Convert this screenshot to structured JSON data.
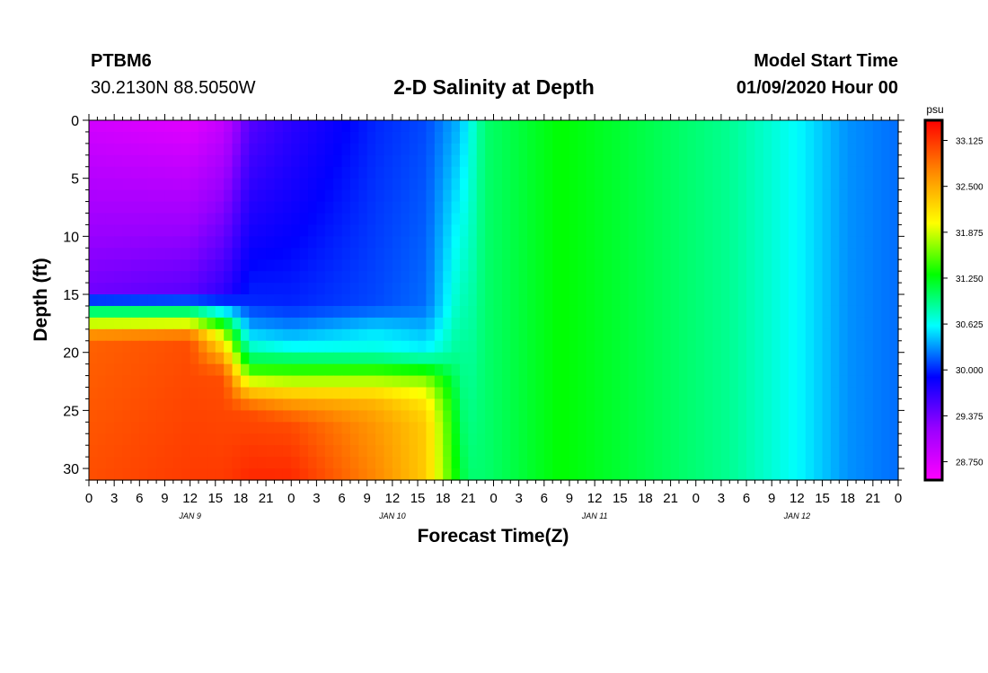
{
  "header": {
    "station": "PTBM6",
    "location": "30.2130N 88.5050W",
    "title": "2-D Salinity at Depth",
    "start_label": "Model Start Time",
    "start_value": "01/09/2020 Hour 00"
  },
  "chart_data": {
    "type": "heatmap",
    "title": "2-D Salinity at Depth",
    "xlabel": "Forecast Time(Z)",
    "ylabel": "Depth (ft)",
    "x_range_hours": [
      0,
      96
    ],
    "x_tick_labels": [
      "0",
      "3",
      "6",
      "9",
      "12",
      "15",
      "18",
      "21",
      "0",
      "3",
      "6",
      "9",
      "12",
      "15",
      "18",
      "21",
      "0",
      "3",
      "6",
      "9",
      "12",
      "15",
      "18",
      "21",
      "0",
      "3",
      "6",
      "9",
      "12",
      "15",
      "18",
      "21",
      "0"
    ],
    "day_labels": [
      "JAN 9",
      "JAN 10",
      "JAN 11",
      "JAN 12"
    ],
    "y_range": [
      0,
      31
    ],
    "y_inverted": true,
    "y_ticks": [
      0,
      5,
      10,
      15,
      20,
      25,
      30
    ],
    "colorbar": {
      "unit": "psu",
      "min": 28.5,
      "max": 33.4,
      "labels": [
        "33.125",
        "32.500",
        "31.875",
        "31.250",
        "30.625",
        "30.000",
        "29.375",
        "28.750"
      ]
    },
    "salinity_profiles": [
      {
        "hour": 0,
        "layers": [
          [
            0,
            28.8
          ],
          [
            15,
            29.4
          ],
          [
            16,
            30.7
          ],
          [
            17,
            31.3
          ],
          [
            18,
            32.4
          ],
          [
            19,
            32.9
          ],
          [
            31,
            33.0
          ]
        ]
      },
      {
        "hour": 12,
        "layers": [
          [
            0,
            28.7
          ],
          [
            15,
            29.5
          ],
          [
            16,
            30.7
          ],
          [
            17,
            31.3
          ],
          [
            18,
            32.5
          ],
          [
            19,
            33.0
          ],
          [
            31,
            33.1
          ]
        ]
      },
      {
        "hour": 16,
        "layers": [
          [
            0,
            28.9
          ],
          [
            15,
            29.7
          ],
          [
            16.5,
            30.6
          ],
          [
            18,
            31.6
          ],
          [
            20,
            32.4
          ],
          [
            22,
            33.0
          ],
          [
            31,
            33.1
          ]
        ]
      },
      {
        "hour": 19,
        "layers": [
          [
            0,
            29.5
          ],
          [
            15.5,
            30.0
          ],
          [
            17,
            30.2
          ],
          [
            19,
            30.6
          ],
          [
            21,
            31.2
          ],
          [
            22.5,
            31.9
          ],
          [
            23.5,
            32.4
          ],
          [
            25,
            33.0
          ],
          [
            31,
            33.2
          ]
        ]
      },
      {
        "hour": 24,
        "layers": [
          [
            0,
            29.7
          ],
          [
            16,
            30.0
          ],
          [
            18,
            30.3
          ],
          [
            19.5,
            30.6
          ],
          [
            21,
            31.2
          ],
          [
            22.5,
            31.8
          ],
          [
            24,
            32.5
          ],
          [
            26,
            33.0
          ],
          [
            31,
            33.2
          ]
        ]
      },
      {
        "hour": 34,
        "layers": [
          [
            0,
            30.0
          ],
          [
            16,
            30.1
          ],
          [
            18,
            30.5
          ],
          [
            20,
            30.7
          ],
          [
            21,
            31.2
          ],
          [
            22.5,
            31.8
          ],
          [
            24,
            32.4
          ],
          [
            26,
            32.6
          ],
          [
            31,
            32.7
          ]
        ]
      },
      {
        "hour": 40,
        "layers": [
          [
            0,
            30.1
          ],
          [
            16,
            30.2
          ],
          [
            18,
            30.4
          ],
          [
            20,
            30.6
          ],
          [
            21,
            31.1
          ],
          [
            22.5,
            31.7
          ],
          [
            24,
            32.1
          ],
          [
            26,
            32.3
          ],
          [
            31,
            32.3
          ]
        ]
      },
      {
        "hour": 44,
        "layers": [
          [
            0,
            30.4
          ],
          [
            31,
            31.2
          ]
        ]
      },
      {
        "hour": 45,
        "layers": [
          [
            0,
            30.6
          ],
          [
            31,
            31.0
          ]
        ]
      },
      {
        "hour": 47,
        "layers": [
          [
            0,
            31.0
          ],
          [
            31,
            31.0
          ]
        ]
      },
      {
        "hour": 56,
        "layers": [
          [
            0,
            31.3
          ],
          [
            31,
            31.3
          ]
        ]
      },
      {
        "hour": 66,
        "layers": [
          [
            0,
            31.1
          ],
          [
            31,
            31.1
          ]
        ]
      },
      {
        "hour": 76,
        "layers": [
          [
            0,
            30.9
          ],
          [
            31,
            30.9
          ]
        ]
      },
      {
        "hour": 84,
        "layers": [
          [
            0,
            30.6
          ],
          [
            31,
            30.6
          ]
        ]
      },
      {
        "hour": 90,
        "layers": [
          [
            0,
            30.3
          ],
          [
            31,
            30.3
          ]
        ]
      },
      {
        "hour": 96,
        "layers": [
          [
            0,
            30.2
          ],
          [
            31,
            30.2
          ]
        ]
      }
    ]
  }
}
